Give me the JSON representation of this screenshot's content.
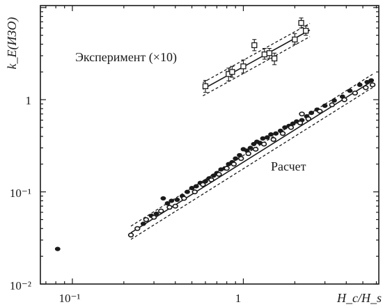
{
  "chart_data": {
    "type": "scatter",
    "xscale": "log",
    "yscale": "log",
    "xlim": [
      0.065,
      6.2
    ],
    "ylim": [
      0.01,
      10.5
    ],
    "ylabel": "k_E(ИЗО)",
    "xlabel": "H_c/H_s",
    "x_ticks": [
      {
        "value": 0.1,
        "label": "10⁻¹"
      },
      {
        "value": 1,
        "label": "1"
      }
    ],
    "y_ticks": [
      {
        "value": 0.01,
        "label": "10⁻²"
      },
      {
        "value": 0.1,
        "label": "10⁻¹"
      },
      {
        "value": 1,
        "label": "1"
      }
    ],
    "annotations": [
      {
        "text": "Эксперимент (×10)",
        "x": 0.109,
        "y": 3.3
      },
      {
        "text": "Расчет",
        "x": 1.72,
        "y": 0.24
      }
    ],
    "series": [
      {
        "marker": "square-open-errorbar",
        "points": [
          {
            "x": 0.6,
            "y": 1.4,
            "err": [
              1.2,
              1.62
            ]
          },
          {
            "x": 0.82,
            "y": 1.9,
            "err": [
              1.6,
              2.2
            ]
          },
          {
            "x": 0.86,
            "y": 2.0,
            "err": [
              1.75,
              2.3
            ]
          },
          {
            "x": 1.0,
            "y": 2.3,
            "err": [
              1.95,
              2.7
            ]
          },
          {
            "x": 1.16,
            "y": 3.9,
            "err": [
              3.4,
              4.5
            ]
          },
          {
            "x": 1.33,
            "y": 3.1,
            "err": [
              2.75,
              3.6
            ]
          },
          {
            "x": 1.42,
            "y": 3.2,
            "err": [
              2.8,
              3.6
            ]
          },
          {
            "x": 1.52,
            "y": 2.8,
            "err": [
              2.4,
              3.2
            ]
          },
          {
            "x": 2.0,
            "y": 4.5,
            "err": [
              4.0,
              5.2
            ]
          },
          {
            "x": 2.18,
            "y": 6.8,
            "err": [
              6.0,
              7.7
            ]
          },
          {
            "x": 2.32,
            "y": 5.6,
            "err": [
              5.0,
              6.3
            ]
          }
        ],
        "fit": {
          "x": [
            0.58,
            2.45
          ],
          "y": [
            1.3,
            5.7
          ],
          "band": 1.18
        }
      },
      {
        "marker": "circle-filled",
        "points": [
          {
            "x": 0.082,
            "y": 0.024
          },
          {
            "x": 0.26,
            "y": 0.045
          },
          {
            "x": 0.29,
            "y": 0.055
          },
          {
            "x": 0.31,
            "y": 0.058
          },
          {
            "x": 0.34,
            "y": 0.085
          },
          {
            "x": 0.36,
            "y": 0.075
          },
          {
            "x": 0.38,
            "y": 0.08
          },
          {
            "x": 0.41,
            "y": 0.082
          },
          {
            "x": 0.44,
            "y": 0.09
          },
          {
            "x": 0.47,
            "y": 0.1
          },
          {
            "x": 0.5,
            "y": 0.11
          },
          {
            "x": 0.53,
            "y": 0.115
          },
          {
            "x": 0.56,
            "y": 0.125
          },
          {
            "x": 0.6,
            "y": 0.13
          },
          {
            "x": 0.63,
            "y": 0.14
          },
          {
            "x": 0.67,
            "y": 0.15
          },
          {
            "x": 0.7,
            "y": 0.16
          },
          {
            "x": 0.74,
            "y": 0.175
          },
          {
            "x": 0.78,
            "y": 0.18
          },
          {
            "x": 0.82,
            "y": 0.2
          },
          {
            "x": 0.86,
            "y": 0.21
          },
          {
            "x": 0.9,
            "y": 0.23
          },
          {
            "x": 0.95,
            "y": 0.25
          },
          {
            "x": 1.0,
            "y": 0.29
          },
          {
            "x": 1.05,
            "y": 0.28
          },
          {
            "x": 1.1,
            "y": 0.3
          },
          {
            "x": 1.15,
            "y": 0.33
          },
          {
            "x": 1.2,
            "y": 0.35
          },
          {
            "x": 1.25,
            "y": 0.34
          },
          {
            "x": 1.3,
            "y": 0.38
          },
          {
            "x": 1.38,
            "y": 0.39
          },
          {
            "x": 1.45,
            "y": 0.42
          },
          {
            "x": 1.55,
            "y": 0.43
          },
          {
            "x": 1.65,
            "y": 0.46
          },
          {
            "x": 1.75,
            "y": 0.5
          },
          {
            "x": 1.85,
            "y": 0.52
          },
          {
            "x": 1.95,
            "y": 0.55
          },
          {
            "x": 2.05,
            "y": 0.58
          },
          {
            "x": 2.2,
            "y": 0.6
          },
          {
            "x": 2.35,
            "y": 0.66
          },
          {
            "x": 2.5,
            "y": 0.72
          },
          {
            "x": 2.7,
            "y": 0.78
          },
          {
            "x": 3.0,
            "y": 0.86
          },
          {
            "x": 3.4,
            "y": 0.98
          },
          {
            "x": 3.8,
            "y": 1.08
          },
          {
            "x": 4.2,
            "y": 1.25
          },
          {
            "x": 4.8,
            "y": 1.45
          },
          {
            "x": 5.3,
            "y": 1.55
          },
          {
            "x": 5.6,
            "y": 1.62
          }
        ],
        "fit": {
          "x": [
            0.22,
            5.7
          ],
          "y": [
            0.036,
            1.6
          ],
          "band": 1.18
        }
      },
      {
        "marker": "circle-open",
        "points": [
          {
            "x": 0.22,
            "y": 0.034
          },
          {
            "x": 0.24,
            "y": 0.04
          },
          {
            "x": 0.27,
            "y": 0.05
          },
          {
            "x": 0.3,
            "y": 0.053
          },
          {
            "x": 0.33,
            "y": 0.062
          },
          {
            "x": 0.37,
            "y": 0.068
          },
          {
            "x": 0.4,
            "y": 0.07
          },
          {
            "x": 0.45,
            "y": 0.085
          },
          {
            "x": 0.52,
            "y": 0.1
          },
          {
            "x": 0.58,
            "y": 0.12
          },
          {
            "x": 0.65,
            "y": 0.135
          },
          {
            "x": 0.72,
            "y": 0.155
          },
          {
            "x": 0.8,
            "y": 0.18
          },
          {
            "x": 0.88,
            "y": 0.2
          },
          {
            "x": 0.97,
            "y": 0.23
          },
          {
            "x": 1.07,
            "y": 0.26
          },
          {
            "x": 1.18,
            "y": 0.29
          },
          {
            "x": 1.32,
            "y": 0.33
          },
          {
            "x": 1.5,
            "y": 0.37
          },
          {
            "x": 1.7,
            "y": 0.43
          },
          {
            "x": 1.9,
            "y": 0.5
          },
          {
            "x": 2.15,
            "y": 0.56
          },
          {
            "x": 2.2,
            "y": 0.7
          },
          {
            "x": 2.4,
            "y": 0.62
          },
          {
            "x": 2.8,
            "y": 0.75
          },
          {
            "x": 3.3,
            "y": 0.88
          },
          {
            "x": 3.9,
            "y": 1.0
          },
          {
            "x": 4.5,
            "y": 1.18
          },
          {
            "x": 5.2,
            "y": 1.35
          },
          {
            "x": 5.7,
            "y": 1.45
          }
        ]
      }
    ]
  }
}
